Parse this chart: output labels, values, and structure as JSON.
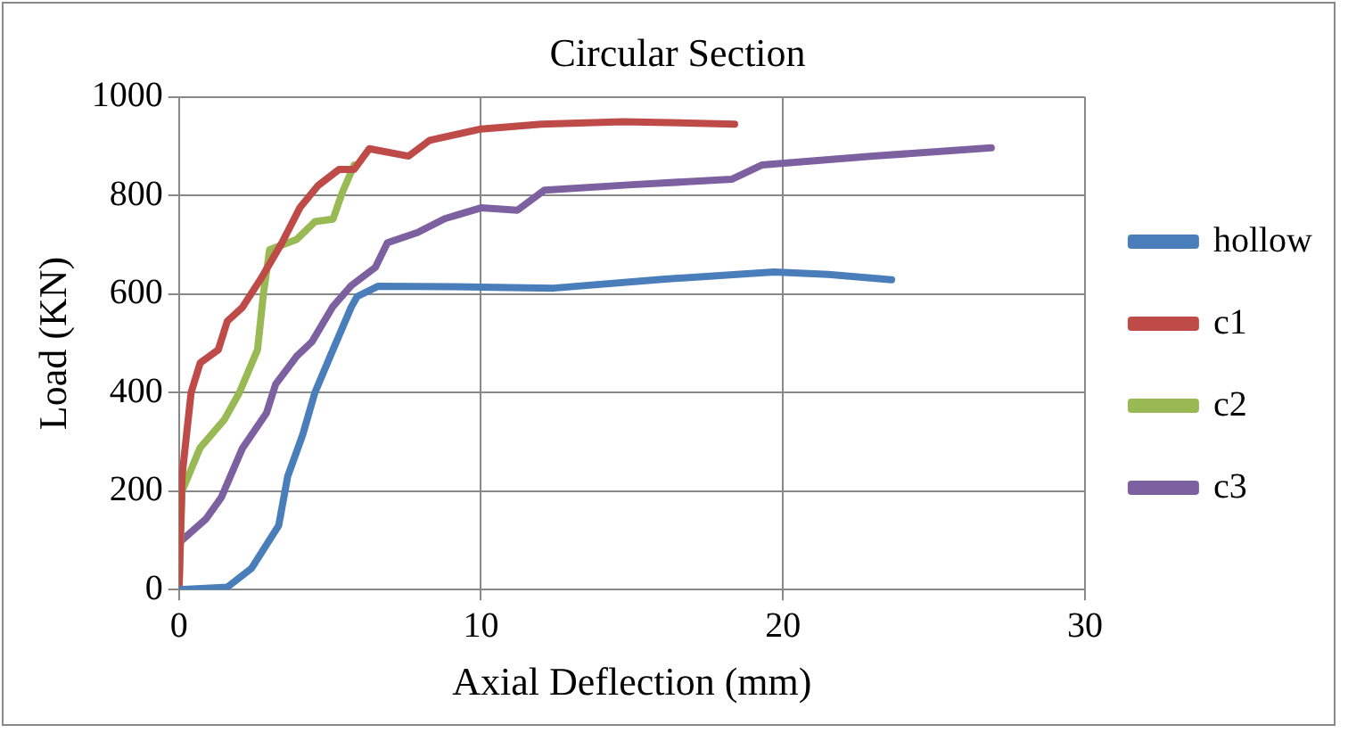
{
  "chart_data": {
    "type": "line",
    "title": "Circular Section",
    "xlabel": "Axial Deflection (mm)",
    "ylabel": "Load (KN)",
    "xlim": [
      0,
      30
    ],
    "xticks": [
      0,
      10,
      20,
      30
    ],
    "ylim": [
      0,
      1000
    ],
    "yticks": [
      0,
      200,
      400,
      600,
      800,
      1000
    ],
    "grid": true,
    "legend": "right",
    "marker": "none",
    "line_style": "solid",
    "series": [
      {
        "name": "hollow",
        "color": "#4a7ebb",
        "x": [
          0,
          1.6,
          2.4,
          3.3,
          3.6,
          4.1,
          4.5,
          5.1,
          5.7,
          5.9,
          6.6,
          9,
          12.4,
          16,
          19.7,
          21.5,
          23.6
        ],
        "values": [
          0,
          5,
          43,
          130,
          230,
          315,
          400,
          487,
          573,
          595,
          616,
          615,
          612,
          630,
          645,
          640,
          629
        ]
      },
      {
        "name": "c1",
        "color": "#be4b48",
        "x": [
          0,
          0.1,
          0.4,
          0.7,
          1.3,
          1.6,
          2.1,
          2.7,
          3.4,
          4,
          4.6,
          5.3,
          5.8,
          6.3,
          7.6,
          8.3,
          10,
          12,
          14.7,
          18.4
        ],
        "values": [
          0,
          230,
          400,
          460,
          487,
          545,
          573,
          630,
          703,
          775,
          820,
          853,
          853,
          895,
          880,
          912,
          935,
          945,
          950,
          945
        ]
      },
      {
        "name": "c2",
        "color": "#98b954",
        "x": [
          0,
          0.1,
          0.7,
          1.5,
          2,
          2.6,
          2.8,
          3,
          3.9,
          4.5,
          5.1,
          5.4,
          5.8
        ],
        "values": [
          0,
          200,
          288,
          345,
          400,
          487,
          603,
          690,
          711,
          747,
          752,
          805,
          862
        ]
      },
      {
        "name": "c3",
        "color": "#7d60a0",
        "x": [
          0,
          0,
          0.9,
          1.4,
          2.1,
          2.9,
          3.2,
          3.9,
          4.4,
          5.1,
          5.7,
          6.5,
          6.9,
          7.9,
          8.8,
          10,
          11.2,
          12.1,
          15,
          18.3,
          19.3,
          23,
          26.9
        ],
        "values": [
          0,
          95,
          144,
          187,
          287,
          359,
          417,
          474,
          503,
          575,
          617,
          654,
          704,
          725,
          753,
          775,
          770,
          811,
          822,
          833,
          862,
          880,
          897
        ]
      }
    ]
  }
}
